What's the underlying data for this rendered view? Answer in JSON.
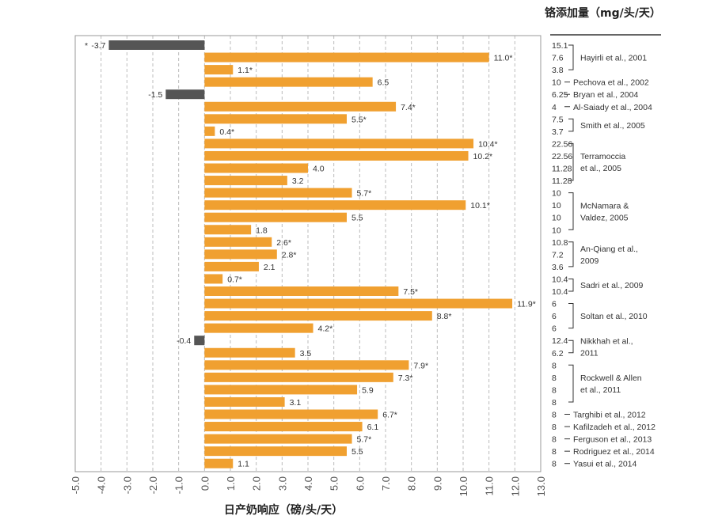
{
  "chart_data": {
    "type": "bar",
    "orientation": "horizontal",
    "xlabel": "日产奶响应（磅/头/天）",
    "right_title": "铬添加量（mg/头/天）",
    "xlim": [
      -5.0,
      13.0
    ],
    "xticks": [
      "-5.0",
      "-4.0",
      "-3.0",
      "-2.0",
      "-1.0",
      "0.0",
      "1.0",
      "2.0",
      "3.0",
      "4.0",
      "5.0",
      "6.0",
      "7.0",
      "8.0",
      "9.0",
      "10.0",
      "11.0",
      "12.0",
      "13.0"
    ],
    "grid": true,
    "colors": {
      "positive": "#f0a030",
      "negative": "#555555",
      "grid": "#bbbbbb"
    },
    "bars": [
      {
        "value": -3.7,
        "label": "-3.7",
        "sig": true,
        "dose": "15.1"
      },
      {
        "value": 11.0,
        "label": "11.0",
        "sig": true,
        "dose": "7.6"
      },
      {
        "value": 1.1,
        "label": "1.1",
        "sig": true,
        "dose": "3.8"
      },
      {
        "value": 6.5,
        "label": "6.5",
        "sig": false,
        "dose": "10"
      },
      {
        "value": -1.5,
        "label": "-1.5",
        "sig": false,
        "dose": "6.25"
      },
      {
        "value": 7.4,
        "label": "7.4",
        "sig": true,
        "dose": "4"
      },
      {
        "value": 5.5,
        "label": "5.5",
        "sig": true,
        "dose": "7.5"
      },
      {
        "value": 0.4,
        "label": "0.4",
        "sig": true,
        "dose": "3.7"
      },
      {
        "value": 10.4,
        "label": "10.4",
        "sig": true,
        "dose": "22.56"
      },
      {
        "value": 10.2,
        "label": "10.2",
        "sig": true,
        "dose": "22.56"
      },
      {
        "value": 4.0,
        "label": "4.0",
        "sig": false,
        "dose": "11.28"
      },
      {
        "value": 3.2,
        "label": "3.2",
        "sig": false,
        "dose": "11.28"
      },
      {
        "value": 5.7,
        "label": "5.7",
        "sig": true,
        "dose": "10"
      },
      {
        "value": 10.1,
        "label": "10.1",
        "sig": true,
        "dose": "10"
      },
      {
        "value": 5.5,
        "label": "5.5",
        "sig": false,
        "dose": "10"
      },
      {
        "value": 1.8,
        "label": "1.8",
        "sig": false,
        "dose": "10"
      },
      {
        "value": 2.6,
        "label": "2.6",
        "sig": true,
        "dose": "10.8"
      },
      {
        "value": 2.8,
        "label": "2.8",
        "sig": true,
        "dose": "7.2"
      },
      {
        "value": 2.1,
        "label": "2.1",
        "sig": false,
        "dose": "3.6"
      },
      {
        "value": 0.7,
        "label": "0.7",
        "sig": true,
        "dose": "10.4"
      },
      {
        "value": 7.5,
        "label": "7.5",
        "sig": true,
        "dose": "10.4"
      },
      {
        "value": 11.9,
        "label": "11.9",
        "sig": true,
        "dose": "6"
      },
      {
        "value": 8.8,
        "label": "8.8",
        "sig": true,
        "dose": "6"
      },
      {
        "value": 4.2,
        "label": "4.2",
        "sig": true,
        "dose": "6"
      },
      {
        "value": -0.4,
        "label": "-0.4",
        "sig": false,
        "dose": "12.4"
      },
      {
        "value": 3.5,
        "label": "3.5",
        "sig": false,
        "dose": "6.2"
      },
      {
        "value": 7.9,
        "label": "7.9",
        "sig": true,
        "dose": "8"
      },
      {
        "value": 7.3,
        "label": "7.3",
        "sig": true,
        "dose": "8"
      },
      {
        "value": 5.9,
        "label": "5.9",
        "sig": false,
        "dose": "8"
      },
      {
        "value": 3.1,
        "label": "3.1",
        "sig": false,
        "dose": "8"
      },
      {
        "value": 6.7,
        "label": "6.7",
        "sig": true,
        "dose": "8"
      },
      {
        "value": 6.1,
        "label": "6.1",
        "sig": false,
        "dose": "8"
      },
      {
        "value": 5.7,
        "label": "5.7",
        "sig": true,
        "dose": "8"
      },
      {
        "value": 5.5,
        "label": "5.5",
        "sig": false,
        "dose": "8"
      },
      {
        "value": 1.1,
        "label": "1.1",
        "sig": false,
        "dose": "8"
      }
    ],
    "studies": [
      {
        "name": [
          "Hayirli et al., 2001"
        ],
        "first": 0,
        "last": 2
      },
      {
        "name": [
          "Pechova et al., 2002"
        ],
        "first": 3,
        "last": 3
      },
      {
        "name": [
          "Bryan et al., 2004"
        ],
        "first": 4,
        "last": 4
      },
      {
        "name": [
          "Al-Saiady et al., 2004"
        ],
        "first": 5,
        "last": 5
      },
      {
        "name": [
          "Smith et al., 2005"
        ],
        "first": 6,
        "last": 7
      },
      {
        "name": [
          "Terramoccia",
          "et al., 2005"
        ],
        "first": 8,
        "last": 11
      },
      {
        "name": [
          "McNamara &",
          "Valdez, 2005"
        ],
        "first": 12,
        "last": 15
      },
      {
        "name": [
          "An-Qiang et al.,",
          "2009"
        ],
        "first": 16,
        "last": 18
      },
      {
        "name": [
          "Sadri et al., 2009"
        ],
        "first": 19,
        "last": 20
      },
      {
        "name": [
          "Soltan et al., 2010"
        ],
        "first": 21,
        "last": 23
      },
      {
        "name": [
          "Nikkhah et al.,",
          "2011"
        ],
        "first": 24,
        "last": 25
      },
      {
        "name": [
          "Rockwell & Allen",
          "et al., 2011"
        ],
        "first": 26,
        "last": 29
      },
      {
        "name": [
          "Targhibi et al., 2012"
        ],
        "first": 30,
        "last": 30
      },
      {
        "name": [
          "Kafilzadeh et al., 2012"
        ],
        "first": 31,
        "last": 31
      },
      {
        "name": [
          "Ferguson et al., 2013"
        ],
        "first": 32,
        "last": 32
      },
      {
        "name": [
          "Rodriguez et al., 2014"
        ],
        "first": 33,
        "last": 33
      },
      {
        "name": [
          "Yasui et al., 2014"
        ],
        "first": 34,
        "last": 34
      }
    ]
  }
}
